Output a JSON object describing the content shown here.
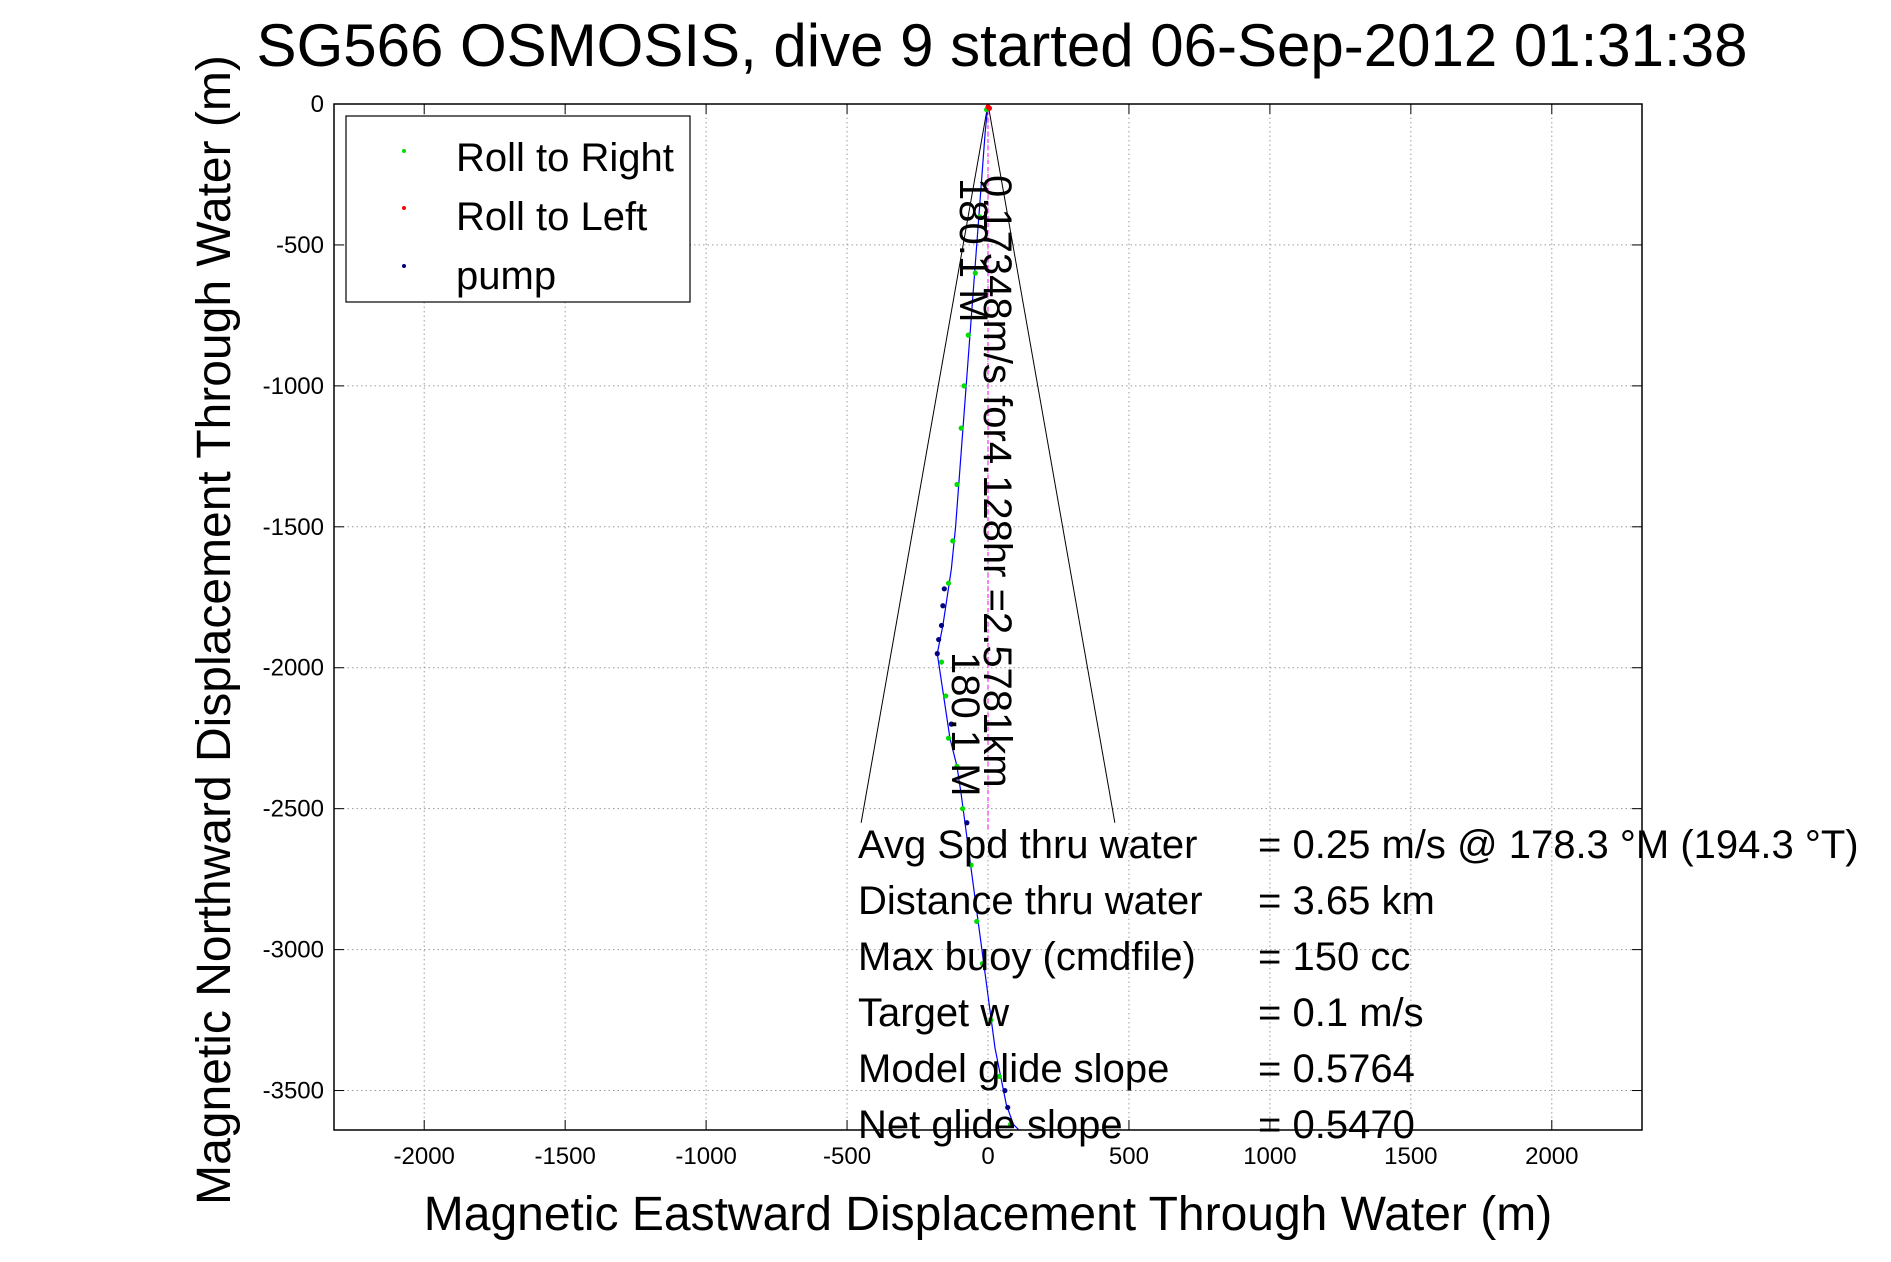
{
  "chart_data": {
    "type": "scatter",
    "title": "SG566 OSMOSIS, dive 9 started 06-Sep-2012 01:31:38",
    "xlabel": "Magnetic Eastward Displacement Through Water (m)",
    "ylabel": "Magnetic Northward Displacement Through Water (m)",
    "xlim": [
      -2320,
      2320
    ],
    "ylim": [
      -3640,
      0
    ],
    "xticks": [
      -2000,
      -1500,
      -1000,
      -500,
      0,
      500,
      1000,
      1500,
      2000
    ],
    "yticks": [
      0,
      -500,
      -1000,
      -1500,
      -2000,
      -2500,
      -3000,
      -3500
    ],
    "grid": true,
    "legend_position": "top-left",
    "colors": {
      "track": "#0000ff",
      "roll_right": "#00dd00",
      "roll_left": "#ff0000",
      "pump": "#000080",
      "heading_line": "#ff00ff",
      "axes": "#000000"
    },
    "series": [
      {
        "name": "Roll to Right",
        "color": "#00dd00",
        "points": [
          [
            -5,
            -20
          ],
          [
            -30,
            -400
          ],
          [
            -45,
            -600
          ],
          [
            -70,
            -820
          ],
          [
            -85,
            -1000
          ],
          [
            -95,
            -1150
          ],
          [
            -110,
            -1350
          ],
          [
            -125,
            -1550
          ],
          [
            -140,
            -1700
          ],
          [
            -165,
            -1980
          ],
          [
            -150,
            -2100
          ],
          [
            -140,
            -2250
          ],
          [
            -110,
            -2350
          ],
          [
            -90,
            -2500
          ],
          [
            -60,
            -2700
          ],
          [
            -40,
            -2900
          ],
          [
            -20,
            -3050
          ],
          [
            10,
            -3250
          ],
          [
            40,
            -3450
          ],
          [
            80,
            -3620
          ]
        ]
      },
      {
        "name": "Roll to Left",
        "color": "#ff0000",
        "points": [
          [
            0,
            -10
          ],
          [
            5,
            -15
          ]
        ]
      },
      {
        "name": "pump",
        "color": "#000080",
        "points": [
          [
            -155,
            -1720
          ],
          [
            -160,
            -1780
          ],
          [
            -165,
            -1850
          ],
          [
            -175,
            -1900
          ],
          [
            -180,
            -1950
          ],
          [
            -130,
            -2200
          ],
          [
            -75,
            -2550
          ],
          [
            60,
            -3500
          ],
          [
            70,
            -3560
          ]
        ]
      }
    ],
    "track": {
      "x": [
        0,
        -10,
        -25,
        -40,
        -55,
        -70,
        -85,
        -100,
        -115,
        -130,
        -145,
        -160,
        -170,
        -180,
        -165,
        -150,
        -135,
        -110,
        -95,
        -75,
        -55,
        -35,
        -15,
        5,
        25,
        45,
        65,
        90,
        110
      ],
      "y": [
        0,
        -100,
        -300,
        -500,
        -700,
        -900,
        -1100,
        -1300,
        -1500,
        -1650,
        -1750,
        -1850,
        -1900,
        -1950,
        -2050,
        -2150,
        -2250,
        -2350,
        -2450,
        -2600,
        -2750,
        -2900,
        -3050,
        -3200,
        -3350,
        -3450,
        -3550,
        -3620,
        -3640
      ]
    },
    "annotations": {
      "current_text": "0.17348m/s for4.128hr =2.5781km",
      "heading_upper": "180.1 M",
      "heading_lower": "180.1 M"
    },
    "stats": [
      {
        "label": "Avg Spd thru water",
        "value": "=  0.25 m/s @ 178.3 °M (194.3 °T)"
      },
      {
        "label": "Distance thru water",
        "value": "=  3.65 km"
      },
      {
        "label": "Max buoy (cmdfile)",
        "value": "= 150 cc"
      },
      {
        "label": "Target w",
        "value": "= 0.1 m/s"
      },
      {
        "label": "Model glide slope",
        "value": "= 0.5764"
      },
      {
        "label": "Net glide slope",
        "value": "= 0.5470"
      }
    ]
  }
}
